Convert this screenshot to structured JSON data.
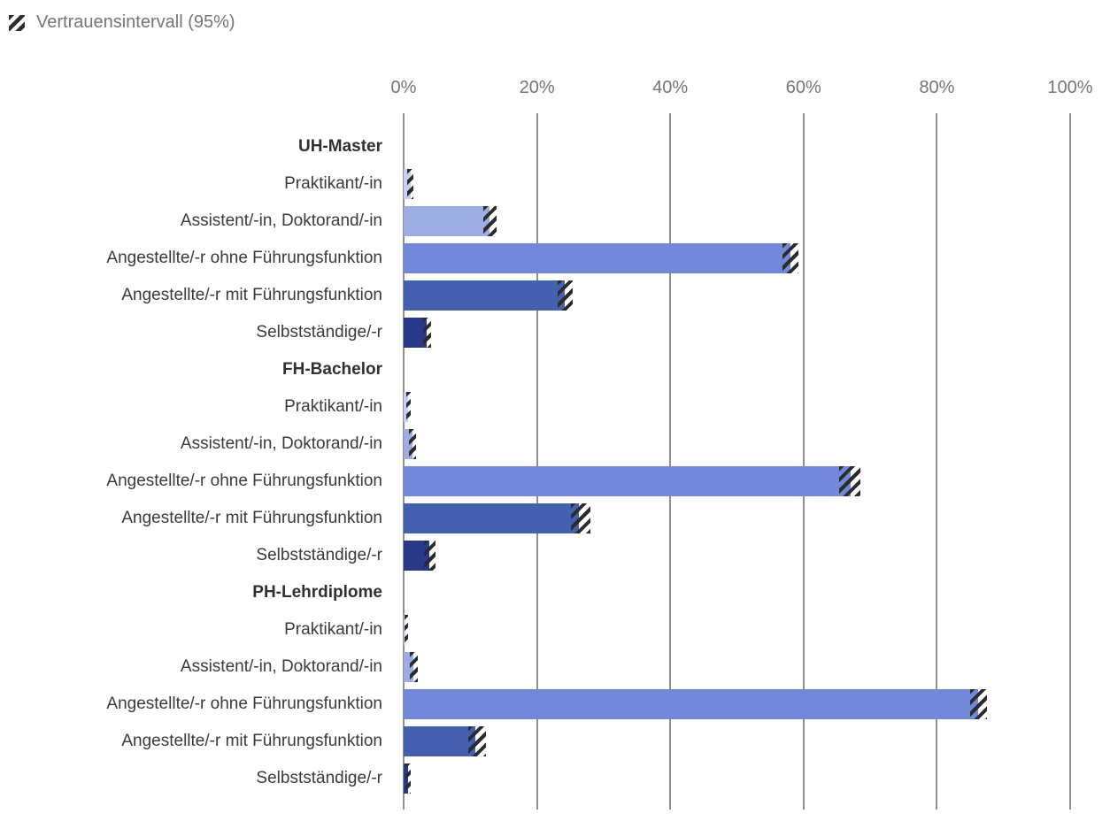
{
  "legend": {
    "label": "Vertrauensintervall (95%)",
    "icon": "ci-hatch-icon"
  },
  "colors": {
    "hatch": "#2b2b2b",
    "gridline": "#8f8f8f",
    "axis_text": "#757575",
    "label_text": "#3a3a3a"
  },
  "chart_data": {
    "type": "bar",
    "orientation": "horizontal",
    "title": "",
    "xlabel": "",
    "ylabel": "",
    "unit": "%",
    "xlim": [
      0,
      100
    ],
    "grid": true,
    "legend_entries": [
      "Vertrauensintervall (95%)"
    ],
    "legend_position": "top-left",
    "x_ticks": [
      {
        "value": 0,
        "label": "0%"
      },
      {
        "value": 20,
        "label": "20%"
      },
      {
        "value": 40,
        "label": "40%"
      },
      {
        "value": 60,
        "label": "60%"
      },
      {
        "value": 80,
        "label": "80%"
      },
      {
        "value": 100,
        "label": "100%"
      }
    ],
    "groups": [
      {
        "label": "UH-Master",
        "rows": [
          {
            "label": "Praktikant/-in",
            "value": 1.0,
            "ci": [
              0.5,
              1.5
            ],
            "color": "#c7d0ee"
          },
          {
            "label": "Assistent/-in, Doktorand/-in",
            "value": 12.9,
            "ci": [
              12.0,
              13.9
            ],
            "color": "#9dade3"
          },
          {
            "label": "Angestellte/-r ohne Führungsfunktion",
            "value": 58.0,
            "ci": [
              56.8,
              59.2
            ],
            "color": "#7288d8"
          },
          {
            "label": "Angestellte/-r mit Führungsfunktion",
            "value": 24.2,
            "ci": [
              23.1,
              25.3
            ],
            "color": "#4660b0"
          },
          {
            "label": "Selbstständige/-r",
            "value": 3.5,
            "ci": [
              2.9,
              4.1
            ],
            "color": "#29398a"
          }
        ]
      },
      {
        "label": "FH-Bachelor",
        "rows": [
          {
            "label": "Praktikant/-in",
            "value": 0.7,
            "ci": [
              0.4,
              1.1
            ],
            "color": "#c7d0ee"
          },
          {
            "label": "Assistent/-in, Doktorand/-in",
            "value": 1.3,
            "ci": [
              0.8,
              1.8
            ],
            "color": "#9dade3"
          },
          {
            "label": "Angestellte/-r ohne Führungsfunktion",
            "value": 67.0,
            "ci": [
              65.4,
              68.5
            ],
            "color": "#7288d8"
          },
          {
            "label": "Angestellte/-r mit Führungsfunktion",
            "value": 26.3,
            "ci": [
              25.1,
              28.0
            ],
            "color": "#4660b0"
          },
          {
            "label": "Selbstständige/-r",
            "value": 3.9,
            "ci": [
              3.1,
              4.8
            ],
            "color": "#29398a"
          }
        ]
      },
      {
        "label": "PH-Lehrdiplome",
        "rows": [
          {
            "label": "Praktikant/-in",
            "value": 0.3,
            "ci": [
              0.1,
              0.6
            ],
            "color": "#c7d0ee"
          },
          {
            "label": "Assistent/-in, Doktorand/-in",
            "value": 1.4,
            "ci": [
              0.9,
              2.1
            ],
            "color": "#9dade3"
          },
          {
            "label": "Angestellte/-r ohne Führungsfunktion",
            "value": 86.2,
            "ci": [
              85.0,
              87.5
            ],
            "color": "#7288d8"
          },
          {
            "label": "Angestellte/-r mit Führungsfunktion",
            "value": 10.8,
            "ci": [
              9.7,
              12.4
            ],
            "color": "#4660b0"
          },
          {
            "label": "Selbstständige/-r",
            "value": 0.6,
            "ci": [
              0.3,
              1.0
            ],
            "color": "#29398a"
          }
        ]
      }
    ]
  }
}
